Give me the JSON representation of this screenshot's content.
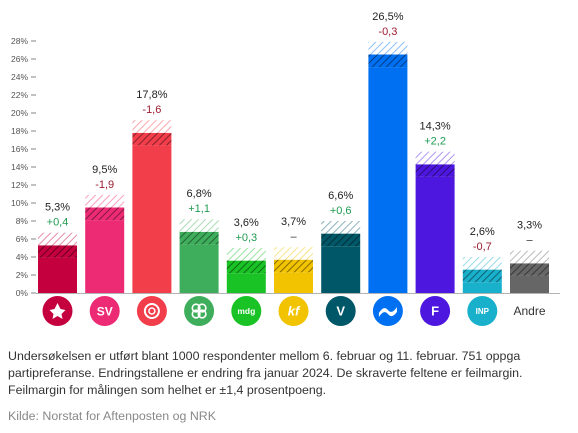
{
  "chart_data": {
    "type": "bar",
    "yticks": [
      "0%",
      "2%",
      "4%",
      "6%",
      "8%",
      "10%",
      "12%",
      "14%",
      "16%",
      "18%",
      "20%",
      "22%",
      "24%",
      "26%",
      "28%"
    ],
    "ylim": [
      0,
      28
    ],
    "margin_of_error": 1.4,
    "categories": [
      "Rødt",
      "SV",
      "Ap",
      "Sp",
      "MDG",
      "KrF",
      "V",
      "H",
      "FrP",
      "INP",
      "Andre"
    ],
    "values": [
      5.3,
      9.5,
      17.8,
      6.8,
      3.6,
      3.7,
      6.6,
      26.5,
      14.3,
      2.6,
      3.3
    ],
    "value_labels": [
      "5,3%",
      "9,5%",
      "17,8%",
      "6,8%",
      "3,6%",
      "3,7%",
      "6,6%",
      "26,5%",
      "14,3%",
      "2,6%",
      "3,3%"
    ],
    "changes": [
      "+0,4",
      "-1,9",
      "-1,6",
      "+1,1",
      "+0,3",
      "–",
      "+0,6",
      "-0,3",
      "+2,2",
      "-0,7",
      "–"
    ],
    "colors": [
      "#c4003e",
      "#ed2b74",
      "#f23d4a",
      "#3fae5c",
      "#19c225",
      "#f2c300",
      "#005767",
      "#0070f2",
      "#4d17e0",
      "#19b0cc",
      "#666666"
    ],
    "change_colors": {
      "positive": "#1f9a50",
      "negative": "#9b1b30",
      "neutral": "#333333"
    },
    "party_icons": [
      "rodt-logo-icon",
      "sv-logo-icon",
      "ap-rose-logo-icon",
      "sp-clover-logo-icon",
      "mdg-logo-icon",
      "krf-logo-icon",
      "venstre-logo-icon",
      "hoyre-logo-icon",
      "frp-logo-icon",
      "inp-logo-icon"
    ],
    "icon_texts": {
      "sv": "SV",
      "mdg": "mdg",
      "krf": "kf",
      "v": "V",
      "frp": "F",
      "inp": "INP"
    },
    "other_label": "Andre"
  },
  "note": "Undersøkelsen er utført blant 1000 respondenter mellom 6. februar og 11. februar. 751 oppga partipreferanse. Endringstallene er endring fra januar 2024. De skraverte feltene er feilmargin. Feilmargin for målingen som helhet er ±1,4 prosentpoeng.",
  "source": "Kilde: Norstat for Aftenposten og NRK"
}
